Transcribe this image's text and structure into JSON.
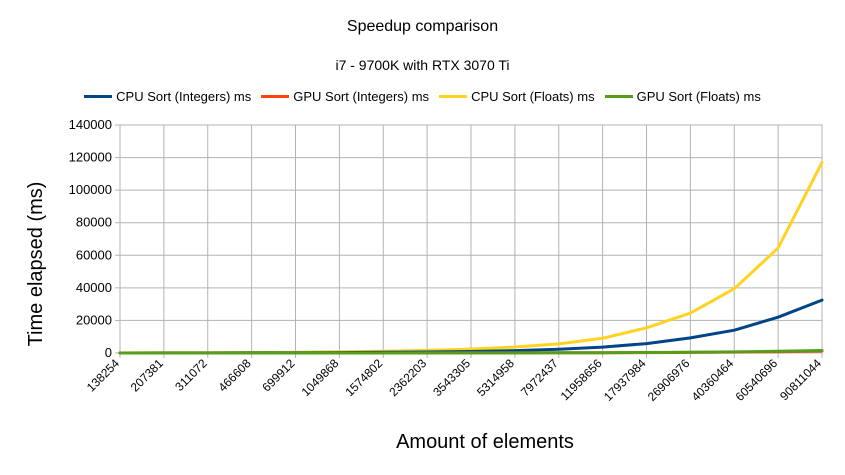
{
  "chart_data": {
    "type": "line",
    "title": "Speedup comparison",
    "subtitle": "i7 - 9700K with RTX 3070 Ti",
    "xlabel": "Amount of elements",
    "ylabel": "Time elapsed (ms)",
    "ylim": [
      0,
      140000
    ],
    "yticks": [
      0,
      20000,
      40000,
      60000,
      80000,
      100000,
      120000,
      140000
    ],
    "grid": true,
    "legend_position": "top",
    "categories": [
      "138254",
      "207381",
      "311072",
      "466608",
      "699912",
      "1049868",
      "1574802",
      "2362203",
      "3543305",
      "5314958",
      "7972437",
      "11958656",
      "17937984",
      "26906976",
      "40360464",
      "60540696",
      "90811044"
    ],
    "series": [
      {
        "name": "CPU Sort (Integers) ms",
        "color": "#004586",
        "values": [
          30,
          45,
          70,
          110,
          170,
          260,
          400,
          620,
          950,
          1450,
          2300,
          3600,
          5800,
          9300,
          14000,
          22000,
          32500
        ]
      },
      {
        "name": "GPU Sort (Integers) ms",
        "color": "#ff420e",
        "values": [
          2,
          3,
          4,
          6,
          9,
          13,
          20,
          30,
          45,
          70,
          105,
          160,
          240,
          360,
          540,
          810,
          1200
        ]
      },
      {
        "name": "CPU Sort (Floats) ms",
        "color": "#ffd320",
        "values": [
          90,
          140,
          210,
          320,
          480,
          720,
          1100,
          1600,
          2400,
          3700,
          5600,
          9000,
          15500,
          24500,
          39500,
          64500,
          117000
        ]
      },
      {
        "name": "GPU Sort (Floats) ms",
        "color": "#579d1c",
        "values": [
          3,
          4,
          6,
          8,
          12,
          18,
          26,
          40,
          60,
          90,
          135,
          200,
          300,
          450,
          680,
          1020,
          1550
        ]
      }
    ]
  }
}
